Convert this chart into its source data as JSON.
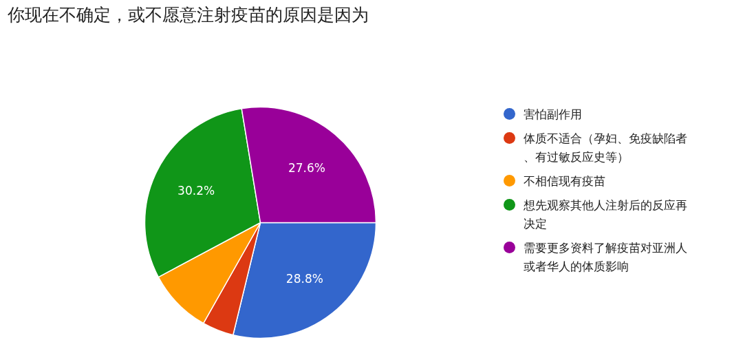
{
  "chart_data": {
    "type": "pie",
    "title": "你现在不确定，或不愿意注射疫苗的原因是因为",
    "categories": [
      "害怕副作用",
      "体质不适合（孕妇、免疫缺陷者、有过敏反应史等）",
      "不相信现有疫苗",
      "想先观察其他人注射后的反应再决定",
      "需要更多资料了解疫苗对亚洲人或者华人的体质影响"
    ],
    "values": [
      28.8,
      4.4,
      9.0,
      30.2,
      27.6
    ],
    "value_labels": [
      "28.8%",
      null,
      null,
      "30.2%",
      "27.6%"
    ],
    "colors": [
      "#3366cc",
      "#dc3912",
      "#ff9900",
      "#109618",
      "#990099"
    ],
    "legend": "right"
  }
}
